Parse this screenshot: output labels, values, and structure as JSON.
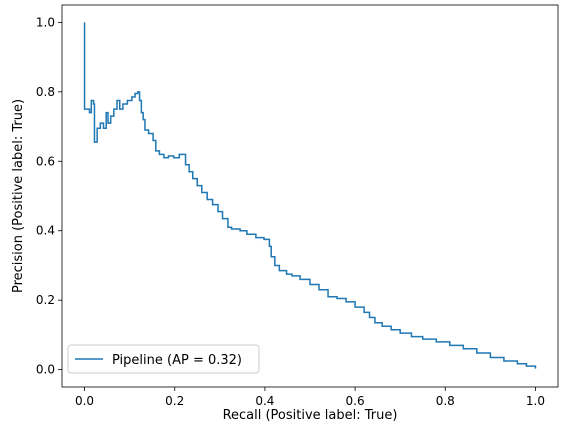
{
  "chart_data": {
    "type": "line",
    "xlabel": "Recall (Positive label: True)",
    "ylabel": "Precision (Positive label: True)",
    "xlim": [
      -0.05,
      1.05
    ],
    "ylim": [
      -0.05,
      1.05
    ],
    "xticks": [
      0.0,
      0.2,
      0.4,
      0.6,
      0.8,
      1.0
    ],
    "yticks": [
      0.0,
      0.2,
      0.4,
      0.6,
      0.8,
      1.0
    ],
    "tick_labels_x": [
      "0.0",
      "0.2",
      "0.4",
      "0.6",
      "0.8",
      "1.0"
    ],
    "tick_labels_y": [
      "0.0",
      "0.2",
      "0.4",
      "0.6",
      "0.8",
      "1.0"
    ],
    "grid": false,
    "legend_position": "lower-left",
    "series": [
      {
        "name": "Pipeline (AP = 0.32)",
        "color": "#1f77b4",
        "step": true,
        "points": [
          [
            0.0,
            1.0
          ],
          [
            0.0,
            0.75
          ],
          [
            0.011,
            0.75
          ],
          [
            0.011,
            0.74
          ],
          [
            0.015,
            0.74
          ],
          [
            0.015,
            0.775
          ],
          [
            0.02,
            0.775
          ],
          [
            0.02,
            0.765
          ],
          [
            0.022,
            0.765
          ],
          [
            0.022,
            0.655
          ],
          [
            0.028,
            0.655
          ],
          [
            0.028,
            0.695
          ],
          [
            0.035,
            0.695
          ],
          [
            0.035,
            0.71
          ],
          [
            0.042,
            0.71
          ],
          [
            0.042,
            0.695
          ],
          [
            0.048,
            0.695
          ],
          [
            0.048,
            0.74
          ],
          [
            0.052,
            0.74
          ],
          [
            0.052,
            0.71
          ],
          [
            0.058,
            0.71
          ],
          [
            0.058,
            0.73
          ],
          [
            0.065,
            0.73
          ],
          [
            0.065,
            0.75
          ],
          [
            0.072,
            0.75
          ],
          [
            0.072,
            0.775
          ],
          [
            0.078,
            0.775
          ],
          [
            0.078,
            0.75
          ],
          [
            0.085,
            0.75
          ],
          [
            0.085,
            0.765
          ],
          [
            0.095,
            0.765
          ],
          [
            0.095,
            0.775
          ],
          [
            0.105,
            0.775
          ],
          [
            0.105,
            0.785
          ],
          [
            0.112,
            0.785
          ],
          [
            0.112,
            0.795
          ],
          [
            0.118,
            0.795
          ],
          [
            0.118,
            0.8
          ],
          [
            0.122,
            0.8
          ],
          [
            0.122,
            0.775
          ],
          [
            0.126,
            0.775
          ],
          [
            0.126,
            0.74
          ],
          [
            0.13,
            0.74
          ],
          [
            0.13,
            0.72
          ],
          [
            0.134,
            0.72
          ],
          [
            0.134,
            0.69
          ],
          [
            0.142,
            0.69
          ],
          [
            0.142,
            0.68
          ],
          [
            0.152,
            0.68
          ],
          [
            0.152,
            0.66
          ],
          [
            0.158,
            0.66
          ],
          [
            0.158,
            0.63
          ],
          [
            0.166,
            0.63
          ],
          [
            0.166,
            0.62
          ],
          [
            0.176,
            0.62
          ],
          [
            0.176,
            0.61
          ],
          [
            0.186,
            0.61
          ],
          [
            0.186,
            0.615
          ],
          [
            0.198,
            0.615
          ],
          [
            0.198,
            0.61
          ],
          [
            0.21,
            0.61
          ],
          [
            0.21,
            0.62
          ],
          [
            0.224,
            0.62
          ],
          [
            0.224,
            0.59
          ],
          [
            0.232,
            0.59
          ],
          [
            0.232,
            0.57
          ],
          [
            0.24,
            0.57
          ],
          [
            0.24,
            0.55
          ],
          [
            0.25,
            0.55
          ],
          [
            0.25,
            0.53
          ],
          [
            0.26,
            0.53
          ],
          [
            0.26,
            0.51
          ],
          [
            0.272,
            0.51
          ],
          [
            0.272,
            0.49
          ],
          [
            0.284,
            0.49
          ],
          [
            0.284,
            0.475
          ],
          [
            0.296,
            0.475
          ],
          [
            0.296,
            0.455
          ],
          [
            0.306,
            0.455
          ],
          [
            0.306,
            0.435
          ],
          [
            0.318,
            0.435
          ],
          [
            0.318,
            0.41
          ],
          [
            0.326,
            0.41
          ],
          [
            0.326,
            0.405
          ],
          [
            0.345,
            0.405
          ],
          [
            0.345,
            0.4
          ],
          [
            0.36,
            0.4
          ],
          [
            0.36,
            0.39
          ],
          [
            0.38,
            0.39
          ],
          [
            0.38,
            0.38
          ],
          [
            0.398,
            0.38
          ],
          [
            0.398,
            0.375
          ],
          [
            0.41,
            0.375
          ],
          [
            0.41,
            0.355
          ],
          [
            0.414,
            0.355
          ],
          [
            0.414,
            0.325
          ],
          [
            0.422,
            0.325
          ],
          [
            0.422,
            0.3
          ],
          [
            0.432,
            0.3
          ],
          [
            0.432,
            0.285
          ],
          [
            0.448,
            0.285
          ],
          [
            0.448,
            0.275
          ],
          [
            0.46,
            0.275
          ],
          [
            0.46,
            0.27
          ],
          [
            0.478,
            0.27
          ],
          [
            0.478,
            0.26
          ],
          [
            0.5,
            0.26
          ],
          [
            0.5,
            0.245
          ],
          [
            0.52,
            0.245
          ],
          [
            0.52,
            0.23
          ],
          [
            0.54,
            0.23
          ],
          [
            0.54,
            0.21
          ],
          [
            0.56,
            0.21
          ],
          [
            0.56,
            0.205
          ],
          [
            0.58,
            0.205
          ],
          [
            0.58,
            0.195
          ],
          [
            0.6,
            0.195
          ],
          [
            0.6,
            0.18
          ],
          [
            0.62,
            0.18
          ],
          [
            0.62,
            0.165
          ],
          [
            0.632,
            0.165
          ],
          [
            0.632,
            0.15
          ],
          [
            0.644,
            0.15
          ],
          [
            0.644,
            0.135
          ],
          [
            0.66,
            0.135
          ],
          [
            0.66,
            0.125
          ],
          [
            0.68,
            0.125
          ],
          [
            0.68,
            0.115
          ],
          [
            0.7,
            0.115
          ],
          [
            0.7,
            0.105
          ],
          [
            0.725,
            0.105
          ],
          [
            0.725,
            0.095
          ],
          [
            0.75,
            0.095
          ],
          [
            0.75,
            0.088
          ],
          [
            0.78,
            0.088
          ],
          [
            0.78,
            0.08
          ],
          [
            0.81,
            0.08
          ],
          [
            0.81,
            0.07
          ],
          [
            0.84,
            0.07
          ],
          [
            0.84,
            0.06
          ],
          [
            0.87,
            0.06
          ],
          [
            0.87,
            0.048
          ],
          [
            0.9,
            0.048
          ],
          [
            0.9,
            0.035
          ],
          [
            0.93,
            0.035
          ],
          [
            0.93,
            0.025
          ],
          [
            0.96,
            0.025
          ],
          [
            0.96,
            0.017
          ],
          [
            0.98,
            0.017
          ],
          [
            0.98,
            0.01
          ],
          [
            1.0,
            0.01
          ],
          [
            1.0,
            0.003
          ]
        ]
      }
    ]
  },
  "legend": {
    "label": "Pipeline (AP = 0.32)"
  }
}
